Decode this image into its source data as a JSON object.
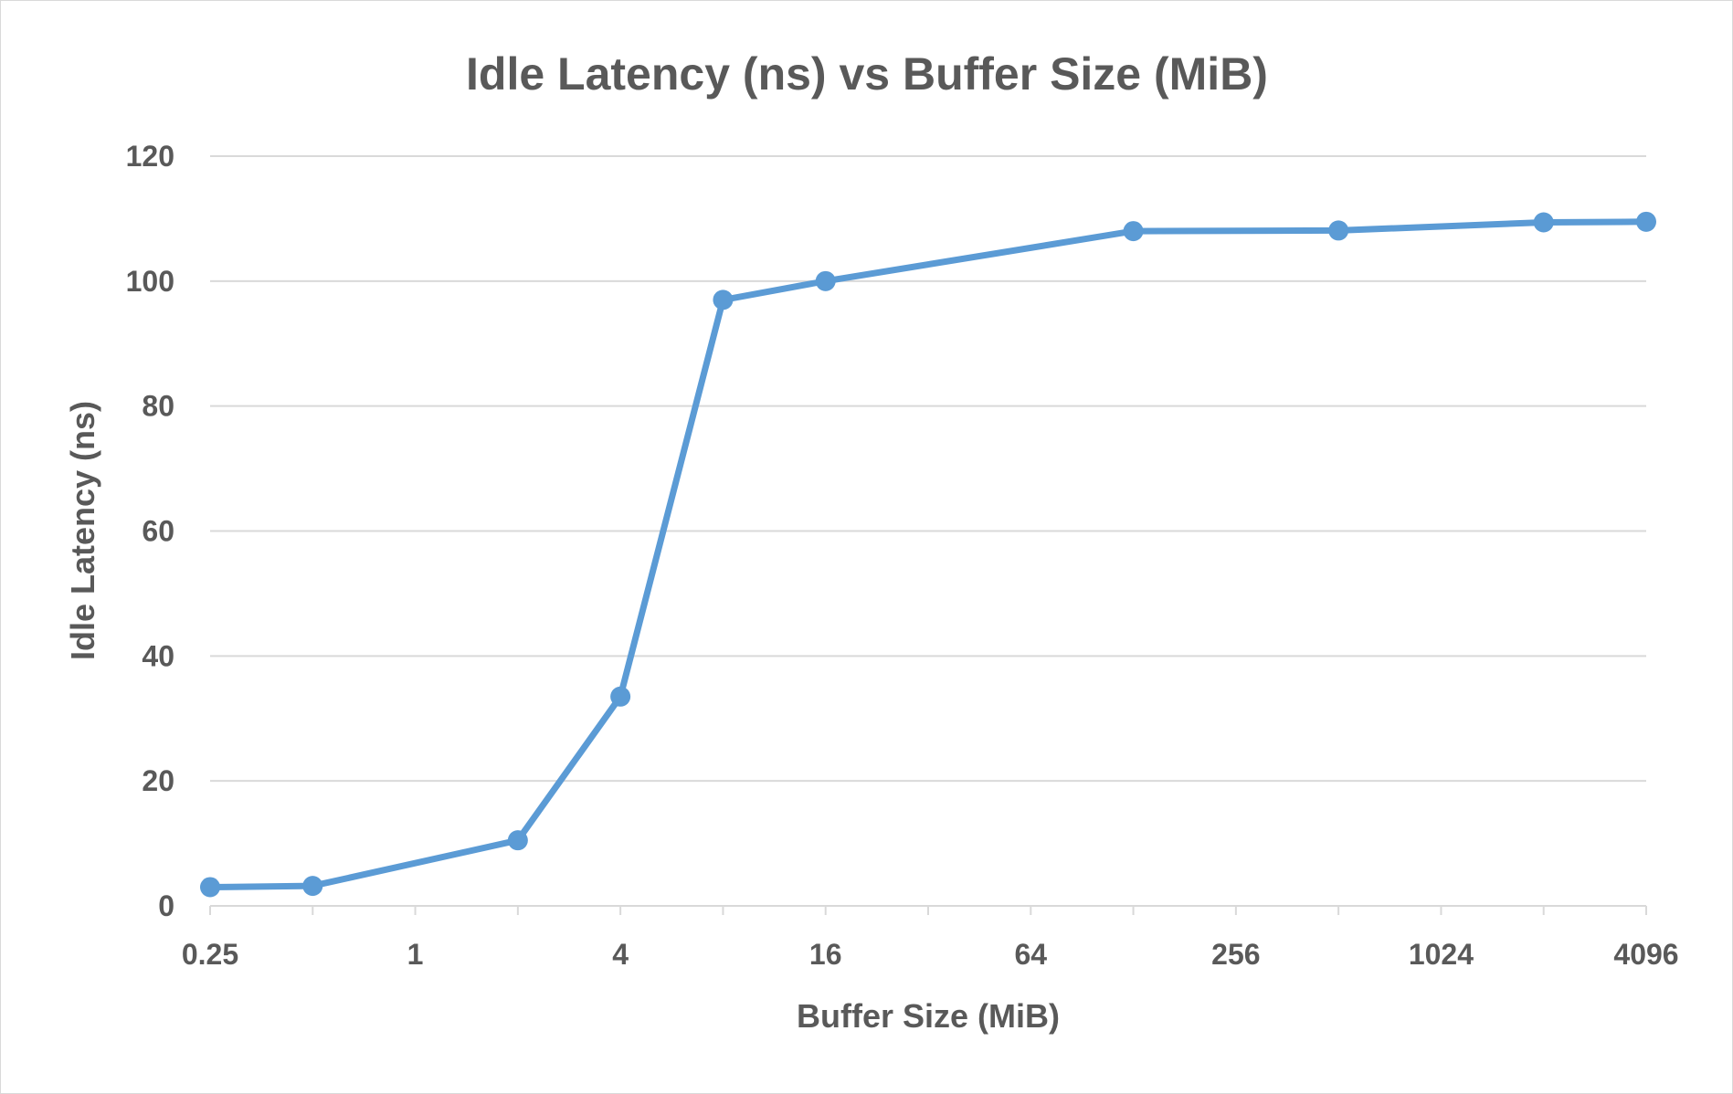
{
  "chart_data": {
    "type": "line",
    "title": "Idle Latency (ns) vs Buffer Size (MiB)",
    "xlabel": "Buffer Size (MiB)",
    "ylabel": "Idle Latency (ns)",
    "x_scale": "log2",
    "x_tick_labels": [
      "0.25",
      "1",
      "4",
      "16",
      "64",
      "256",
      "1024",
      "4096"
    ],
    "x_tick_values": [
      0.25,
      1,
      4,
      16,
      64,
      256,
      1024,
      4096
    ],
    "x_range": [
      0.25,
      4096
    ],
    "y_tick_labels": [
      "0",
      "20",
      "40",
      "60",
      "80",
      "100",
      "120"
    ],
    "ylim": [
      0,
      120
    ],
    "grid": "horizontal",
    "legend": "none",
    "series": [
      {
        "color": "#5b9bd5",
        "x": [
          0.25,
          0.5,
          2,
          4,
          8,
          16,
          128,
          512,
          2048,
          4096
        ],
        "y": [
          3,
          3.2,
          10.5,
          33.5,
          97,
          100,
          108,
          108.1,
          109.4,
          109.5
        ]
      }
    ]
  }
}
